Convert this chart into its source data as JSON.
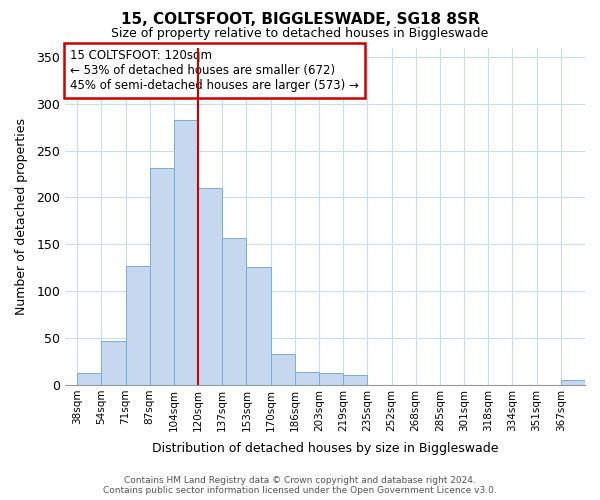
{
  "title": "15, COLTSFOOT, BIGGLESWADE, SG18 8SR",
  "subtitle": "Size of property relative to detached houses in Biggleswade",
  "xlabel": "Distribution of detached houses by size in Biggleswade",
  "ylabel": "Number of detached properties",
  "bar_labels": [
    "38sqm",
    "54sqm",
    "71sqm",
    "87sqm",
    "104sqm",
    "120sqm",
    "137sqm",
    "153sqm",
    "170sqm",
    "186sqm",
    "203sqm",
    "219sqm",
    "235sqm",
    "252sqm",
    "268sqm",
    "285sqm",
    "301sqm",
    "318sqm",
    "334sqm",
    "351sqm",
    "367sqm"
  ],
  "bar_values": [
    12,
    47,
    127,
    231,
    283,
    210,
    157,
    126,
    33,
    13,
    12,
    10,
    0,
    0,
    0,
    0,
    0,
    0,
    0,
    0,
    5
  ],
  "bar_color": "#c5d8f0",
  "bar_edge_color": "#7aaed4",
  "vline_color": "#cc0000",
  "annotation_text": "15 COLTSFOOT: 120sqm\n← 53% of detached houses are smaller (672)\n45% of semi-detached houses are larger (573) →",
  "annotation_box_color": "#ffffff",
  "annotation_box_edge": "#cc0000",
  "ylim": [
    0,
    360
  ],
  "yticks": [
    0,
    50,
    100,
    150,
    200,
    250,
    300,
    350
  ],
  "footer1": "Contains HM Land Registry data © Crown copyright and database right 2024.",
  "footer2": "Contains public sector information licensed under the Open Government Licence v3.0.",
  "bg_color": "#ffffff",
  "grid_color": "#c8ddf0"
}
